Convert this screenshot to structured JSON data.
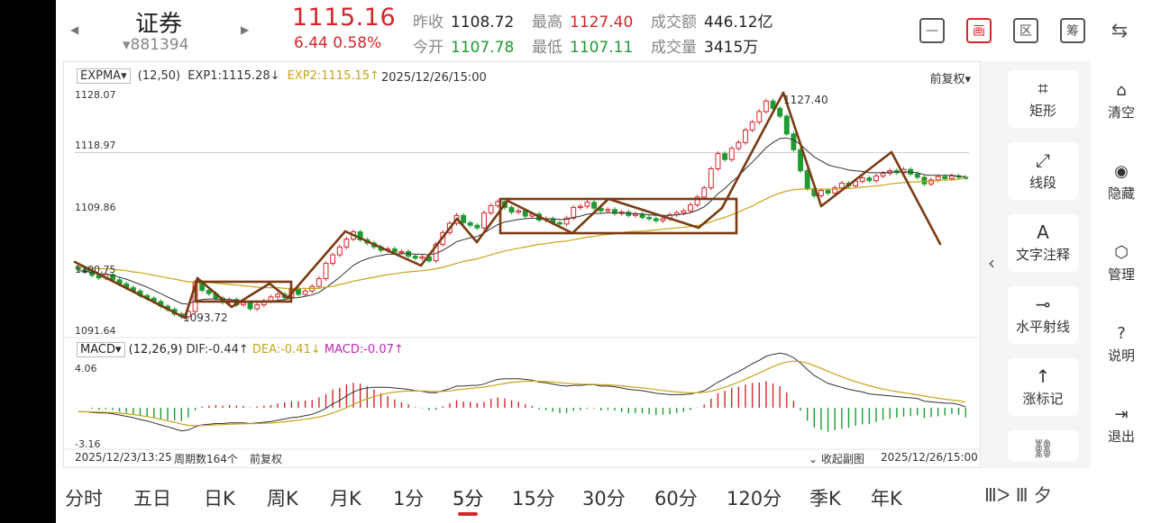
{
  "header": {
    "nav_prev": "◀",
    "nav_next": "▶",
    "name": "证券",
    "code": "▾881394",
    "price": "1115.16",
    "change": "6.44  0.58%",
    "quotes": {
      "prev_close_label": "昨收",
      "prev_close": "1108.72",
      "open_label": "今开",
      "open": "1107.78",
      "high_label": "最高",
      "high": "1127.40",
      "low_label": "最低",
      "low": "1107.11",
      "amount_label": "成交额",
      "amount": "446.12亿",
      "volume_label": "成交量",
      "volume": "3415万"
    },
    "buttons": [
      "—",
      "画",
      "区",
      "筹",
      "⇆"
    ]
  },
  "indicator": {
    "name": "EXPMA▾",
    "params": "(12,50)",
    "exp1": "EXP1:1115.28↓",
    "exp2": "EXP2:1115.15↑",
    "date": "2025/12/26/15:00",
    "fuquan": "前复权▾",
    "y_labels": [
      "1128.07",
      "1118.97",
      "1109.86",
      "1100.75",
      "1091.64"
    ],
    "high_mark": "1127.40",
    "low_mark": "1093.72"
  },
  "macd": {
    "name": "MACD▾",
    "params": "(12,26,9)",
    "dif": "DIF:-0.44↑",
    "dea": "DEA:-0.41↓",
    "macd": "MACD:-0.07↑",
    "y_top": "4.06",
    "y_bottom": "-3.16"
  },
  "footer": {
    "start": "2025/12/23/13:25",
    "count": "周期数164个",
    "fuquan": "前复权",
    "collapse": "⌄ 收起副图",
    "end": "2025/12/26/15:00"
  },
  "tools": [
    {
      "icon": "⌗",
      "label": "矩形"
    },
    {
      "icon": "⤢",
      "label": "线段"
    },
    {
      "icon": "A",
      "label": "文字注释"
    },
    {
      "icon": "⊸",
      "label": "水平射线"
    },
    {
      "icon": "↑",
      "label": "涨标记"
    },
    {
      "icon": "⛓",
      "label": ""
    }
  ],
  "side": [
    {
      "icon": "⌂",
      "label": "清空"
    },
    {
      "icon": "◉",
      "label": "隐藏"
    },
    {
      "icon": "⬡",
      "label": "管理"
    },
    {
      "icon": "?",
      "label": "说明"
    },
    {
      "icon": "⇥",
      "label": "退出"
    }
  ],
  "collapse_arrow": "‹",
  "periods": [
    "分时",
    "五日",
    "日K",
    "周K",
    "月K",
    "1分",
    "5分",
    "15分",
    "30分",
    "60分",
    "120分",
    "季K",
    "年K"
  ],
  "active_period": "5分",
  "watermark": "Ⅲᐳ Ⅲ 夕",
  "colors": {
    "up": "#d4262b",
    "down": "#1e9b32",
    "exp2": "#c7a41a",
    "macd": "#c228b5",
    "drawing": "#7a3b12"
  },
  "chart_data": {
    "type": "candlestick",
    "ylim": [
      1091.64,
      1128.07
    ],
    "close": [
      1101.2,
      1100.8,
      1100.3,
      1099.9,
      1100.4,
      1099.6,
      1099.0,
      1098.4,
      1097.9,
      1097.2,
      1096.8,
      1096.3,
      1095.6,
      1095.1,
      1094.4,
      1094.0,
      1094.8,
      1099.2,
      1098.0,
      1097.5,
      1096.8,
      1096.2,
      1096.6,
      1095.8,
      1096.1,
      1095.2,
      1095.8,
      1096.4,
      1097.0,
      1097.4,
      1096.9,
      1098.2,
      1097.4,
      1097.9,
      1098.6,
      1099.8,
      1102.1,
      1103.4,
      1104.6,
      1105.8,
      1106.9,
      1105.7,
      1105.2,
      1104.6,
      1104.1,
      1104.3,
      1103.8,
      1103.9,
      1103.2,
      1102.9,
      1103.1,
      1102.5,
      1105.0,
      1106.8,
      1108.2,
      1109.4,
      1108.3,
      1107.9,
      1107.5,
      1109.8,
      1110.9,
      1111.5,
      1110.6,
      1109.9,
      1110.1,
      1109.3,
      1109.6,
      1108.7,
      1108.9,
      1108.3,
      1108.1,
      1109.0,
      1110.6,
      1110.8,
      1111.4,
      1110.5,
      1110.1,
      1110.3,
      1109.7,
      1109.9,
      1109.4,
      1109.6,
      1109.1,
      1108.9,
      1108.6,
      1108.9,
      1109.5,
      1109.8,
      1110.1,
      1111.0,
      1112.2,
      1113.6,
      1116.5,
      1118.8,
      1117.9,
      1119.6,
      1120.5,
      1122.4,
      1123.6,
      1125.2,
      1126.8,
      1125.7,
      1124.5,
      1121.8,
      1119.4,
      1116.2,
      1113.5,
      1112.4,
      1113.2,
      1112.8,
      1113.6,
      1114.3,
      1113.9,
      1114.6,
      1115.1,
      1114.7,
      1115.4,
      1115.8,
      1116.2,
      1115.9,
      1116.4,
      1115.7,
      1115.2,
      1114.2,
      1114.8,
      1115.3,
      1115.0,
      1115.4,
      1115.2,
      1115.16
    ],
    "exp1": [
      1101.0,
      1100.9,
      1100.7,
      1100.5,
      1100.5,
      1100.3,
      1100.0,
      1099.7,
      1099.3,
      1098.9,
      1098.5,
      1098.0,
      1097.5,
      1097.0,
      1096.5,
      1096.0,
      1095.9,
      1096.4,
      1096.6,
      1096.7,
      1096.7,
      1096.6,
      1096.6,
      1096.5,
      1096.4,
      1096.2,
      1096.2,
      1096.2,
      1096.3,
      1096.5,
      1096.6,
      1096.8,
      1096.9,
      1097.1,
      1097.3,
      1097.7,
      1098.4,
      1099.2,
      1100.0,
      1100.9,
      1101.8,
      1102.4,
      1102.8,
      1103.1,
      1103.3,
      1103.5,
      1103.5,
      1103.6,
      1103.6,
      1103.5,
      1103.5,
      1103.4,
      1103.6,
      1104.1,
      1104.7,
      1105.4,
      1105.7,
      1106.0,
      1106.2,
      1106.7,
      1107.4,
      1108.0,
      1108.4,
      1108.6,
      1108.8,
      1108.9,
      1109.0,
      1108.9,
      1108.9,
      1108.9,
      1108.8,
      1108.8,
      1109.1,
      1109.3,
      1109.6,
      1109.7,
      1109.7,
      1109.8,
      1109.8,
      1109.8,
      1109.7,
      1109.7,
      1109.6,
      1109.5,
      1109.4,
      1109.4,
      1109.4,
      1109.5,
      1109.6,
      1109.8,
      1110.2,
      1110.7,
      1111.6,
      1112.7,
      1113.5,
      1114.5,
      1115.4,
      1116.5,
      1117.5,
      1118.6,
      1119.7,
      1120.5,
      1121.1,
      1121.2,
      1120.9,
      1120.2,
      1119.2,
      1118.3,
      1117.7,
      1117.1,
      1116.8,
      1116.6,
      1116.3,
      1116.2,
      1116.1,
      1115.9,
      1115.9,
      1115.9,
      1116.0,
      1116.0,
      1116.0,
      1116.0,
      1115.9,
      1115.6,
      1115.5,
      1115.5,
      1115.5,
      1115.5,
      1115.4,
      1115.28
    ],
    "exp2": [
      1101.6,
      1101.5,
      1101.4,
      1101.3,
      1101.3,
      1101.2,
      1101.1,
      1101.0,
      1100.8,
      1100.7,
      1100.5,
      1100.3,
      1100.1,
      1099.9,
      1099.7,
      1099.5,
      1099.3,
      1099.3,
      1099.2,
      1099.2,
      1099.1,
      1099.0,
      1098.9,
      1098.8,
      1098.7,
      1098.6,
      1098.5,
      1098.4,
      1098.4,
      1098.4,
      1098.3,
      1098.3,
      1098.3,
      1098.3,
      1098.3,
      1098.3,
      1098.5,
      1098.6,
      1098.9,
      1099.1,
      1099.4,
      1099.6,
      1099.8,
      1100.0,
      1100.2,
      1100.4,
      1100.5,
      1100.7,
      1100.8,
      1100.9,
      1101.0,
      1101.1,
      1101.3,
      1101.5,
      1101.8,
      1102.1,
      1102.4,
      1102.6,
      1102.8,
      1103.1,
      1103.4,
      1103.7,
      1104.0,
      1104.2,
      1104.4,
      1104.6,
      1104.8,
      1105.0,
      1105.1,
      1105.3,
      1105.4,
      1105.5,
      1105.7,
      1105.9,
      1106.1,
      1106.2,
      1106.4,
      1106.5,
      1106.6,
      1106.8,
      1106.9,
      1107.0,
      1107.0,
      1107.1,
      1107.2,
      1107.3,
      1107.4,
      1107.5,
      1107.6,
      1107.7,
      1107.9,
      1108.1,
      1108.4,
      1108.8,
      1109.1,
      1109.5,
      1109.9,
      1110.4,
      1110.8,
      1111.4,
      1111.9,
      1112.4,
      1112.8,
      1113.1,
      1113.3,
      1113.4,
      1113.4,
      1113.4,
      1113.4,
      1113.4,
      1113.4,
      1113.5,
      1113.5,
      1113.6,
      1113.7,
      1113.8,
      1113.9,
      1114.0,
      1114.2,
      1114.3,
      1114.4,
      1114.5,
      1114.5,
      1114.6,
      1114.6,
      1114.7,
      1114.8,
      1114.8,
      1114.9,
      1115.15
    ],
    "macd_ylim": [
      -3.16,
      4.06
    ]
  }
}
